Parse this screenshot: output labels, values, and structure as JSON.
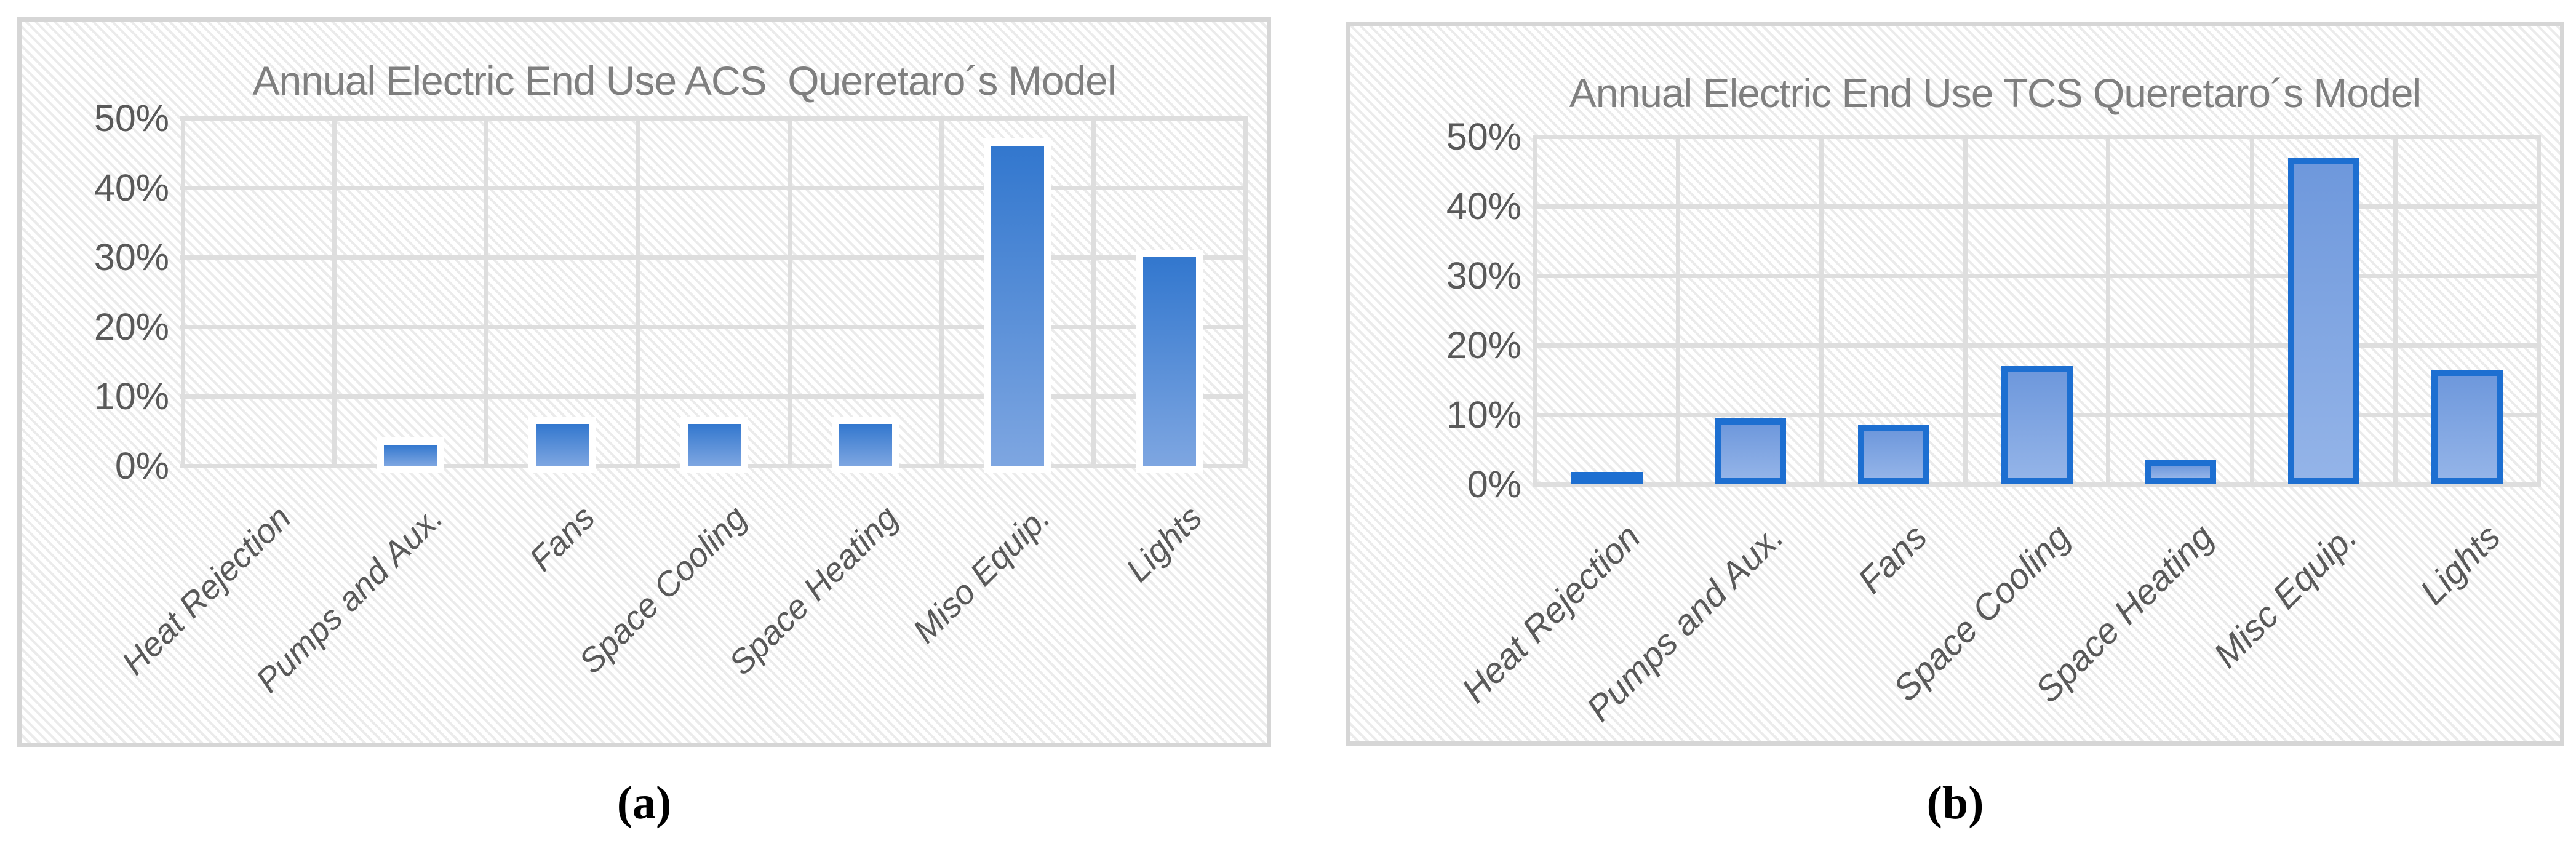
{
  "chart_data": [
    {
      "panel": "a",
      "type": "bar",
      "title": "Annual Electric End Use ACS  Queretaro´s Model",
      "caption": "(a)",
      "categories": [
        "Heat Rejection",
        "Pumps and Aux.",
        "Fans",
        "Space Cooling",
        "Space Heating",
        "Miso Equip.",
        "Lights"
      ],
      "values_percent": [
        0,
        3,
        6,
        6,
        6,
        46,
        30
      ],
      "unit": "%",
      "ylim": [
        0,
        50
      ],
      "ytick_step": 10,
      "ytick_labels": [
        "0%",
        "10%",
        "20%",
        "30%",
        "40%",
        "50%"
      ],
      "xlabel": "",
      "ylabel": "",
      "legend": "none",
      "grid": "horizontal and vertical gridlines every 10% / category",
      "bar_style": {
        "fill_gradient_top": "#3277ce",
        "fill_gradient_bottom": "#7ea6e1",
        "outline": "#ffffff"
      }
    },
    {
      "panel": "b",
      "type": "bar",
      "title": "Annual Electric End Use TCS Queretaro´s Model",
      "caption": "(b)",
      "categories": [
        "Heat Rejection",
        "Pumps and Aux.",
        "Fans",
        "Space Cooling",
        "Space Heating",
        "Misc Equip.",
        "Lights"
      ],
      "values_percent": [
        1,
        9.5,
        8.5,
        17,
        3.5,
        47,
        16.5
      ],
      "unit": "%",
      "ylim": [
        0,
        50
      ],
      "ytick_step": 10,
      "ytick_labels": [
        "0%",
        "10%",
        "20%",
        "30%",
        "40%",
        "50%"
      ],
      "xlabel": "",
      "ylabel": "",
      "legend": "none",
      "grid": "horizontal and vertical gridlines every 10% / category",
      "bar_style": {
        "fill_gradient_top": "#6e98dc",
        "fill_gradient_bottom": "#94b4e8",
        "outline": "#1d6fd1"
      }
    }
  ],
  "style_colors": {
    "panel_border": "#d6d6d6",
    "hatch_stripe": "#ebebeb",
    "gridline": "#dedede",
    "title_text": "#7f7f7f",
    "tick_text": "#595959",
    "category_text": "#595959",
    "caption_text": "#000000"
  }
}
